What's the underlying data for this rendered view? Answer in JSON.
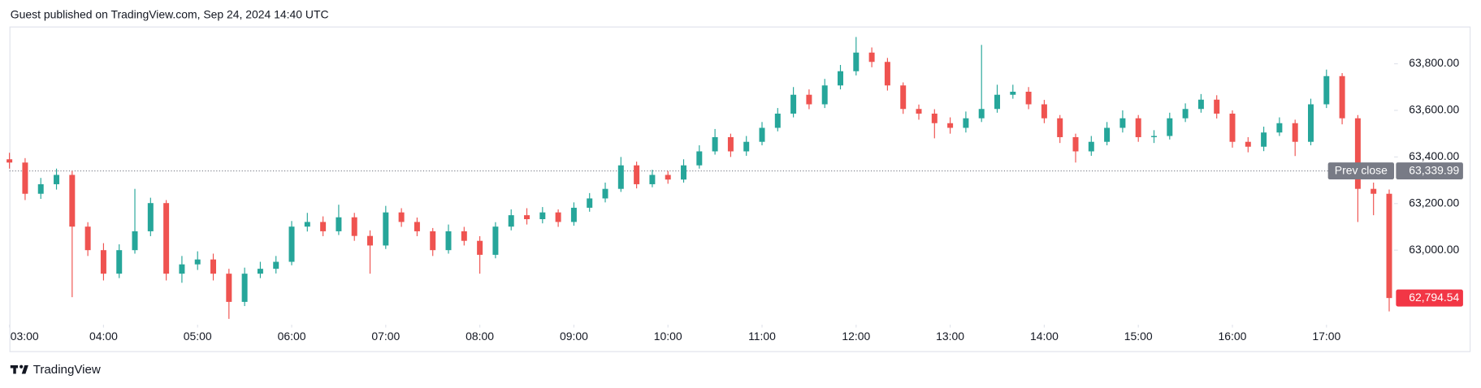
{
  "header": "Guest published on TradingView.com, Sep 24, 2024 14:40 UTC",
  "footer": "TradingView",
  "chart_data": {
    "type": "candlestick",
    "x": [
      "03:00",
      "03:10",
      "03:20",
      "03:30",
      "03:40",
      "03:50",
      "04:00",
      "04:10",
      "04:20",
      "04:30",
      "04:40",
      "04:50",
      "05:00",
      "05:10",
      "05:20",
      "05:30",
      "05:40",
      "05:50",
      "06:00",
      "06:10",
      "06:20",
      "06:30",
      "06:40",
      "06:50",
      "07:00",
      "07:10",
      "07:20",
      "07:30",
      "07:40",
      "07:50",
      "08:00",
      "08:10",
      "08:20",
      "08:30",
      "08:40",
      "08:50",
      "09:00",
      "09:10",
      "09:20",
      "09:30",
      "09:40",
      "09:50",
      "10:00",
      "10:10",
      "10:20",
      "10:30",
      "10:40",
      "10:50",
      "11:00",
      "11:10",
      "11:20",
      "11:30",
      "11:40",
      "11:50",
      "12:00",
      "12:10",
      "12:20",
      "12:30",
      "12:40",
      "12:50",
      "13:00",
      "13:10",
      "13:20",
      "13:30",
      "13:40",
      "13:50",
      "14:00",
      "14:10",
      "14:20",
      "14:30",
      "14:40",
      "14:50",
      "15:00",
      "15:10",
      "15:20",
      "15:30",
      "15:40",
      "15:50",
      "16:00",
      "16:10",
      "16:20",
      "16:30",
      "16:40",
      "16:50",
      "17:00",
      "17:10",
      "17:20",
      "17:30",
      "17:40"
    ],
    "open": [
      63390,
      63376,
      63242,
      63283,
      63323,
      63101,
      63000,
      62899,
      63000,
      63081,
      63202,
      62899,
      62939,
      62960,
      62899,
      62778,
      62899,
      62920,
      62950,
      63101,
      63121,
      63081,
      63141,
      63061,
      63020,
      63162,
      63121,
      63081,
      63000,
      63081,
      63040,
      62980,
      63101,
      63150,
      63133,
      63162,
      63121,
      63182,
      63222,
      63263,
      63364,
      63283,
      63323,
      63303,
      63364,
      63424,
      63485,
      63424,
      63465,
      63525,
      63586,
      63667,
      63626,
      63707,
      63768,
      63848,
      63808,
      63707,
      63606,
      63586,
      63545,
      63525,
      63566,
      63606,
      63667,
      63680,
      63626,
      63566,
      63485,
      63424,
      63465,
      63525,
      63566,
      63485,
      63490,
      63566,
      63606,
      63646,
      63586,
      63465,
      63444,
      63505,
      63545,
      63465,
      63626,
      63747,
      63566,
      63263,
      63242
    ],
    "high": [
      63418,
      63395,
      63310,
      63350,
      63340,
      63120,
      63030,
      63025,
      63263,
      63225,
      63215,
      62975,
      62995,
      62985,
      62920,
      62925,
      62950,
      62975,
      63125,
      63160,
      63145,
      63195,
      63160,
      63085,
      63190,
      63180,
      63140,
      63095,
      63110,
      63100,
      63060,
      63120,
      63175,
      63180,
      63185,
      63175,
      63205,
      63245,
      63290,
      63400,
      63380,
      63345,
      63340,
      63390,
      63450,
      63520,
      63500,
      63490,
      63550,
      63610,
      63700,
      63690,
      63735,
      63795,
      63915,
      63870,
      63825,
      63720,
      63625,
      63605,
      63570,
      63595,
      63881,
      63710,
      63710,
      63700,
      63645,
      63580,
      63500,
      63490,
      63550,
      63600,
      63580,
      63515,
      63590,
      63630,
      63670,
      63665,
      63600,
      63485,
      63530,
      63570,
      63560,
      63650,
      63775,
      63760,
      63580,
      63290,
      63260
    ],
    "low": [
      63350,
      63215,
      63220,
      63260,
      62798,
      62975,
      62870,
      62880,
      62985,
      63060,
      62870,
      62860,
      62915,
      62870,
      62705,
      62760,
      62880,
      62900,
      62935,
      63080,
      63060,
      63065,
      63040,
      62899,
      63005,
      63100,
      63060,
      62975,
      62985,
      63020,
      62899,
      62965,
      63085,
      63110,
      63115,
      63100,
      63105,
      63165,
      63205,
      63250,
      63265,
      63270,
      63285,
      63290,
      63350,
      63410,
      63400,
      63405,
      63450,
      63510,
      63570,
      63605,
      63610,
      63690,
      63750,
      63785,
      63685,
      63585,
      63560,
      63480,
      63500,
      63505,
      63550,
      63590,
      63650,
      63605,
      63545,
      63460,
      63376,
      63405,
      63450,
      63505,
      63465,
      63460,
      63475,
      63550,
      63590,
      63565,
      63440,
      63420,
      63425,
      63490,
      63404,
      63450,
      63610,
      63540,
      63121,
      63150,
      62737
    ],
    "close": [
      63376,
      63242,
      63283,
      63323,
      63101,
      63000,
      62899,
      63000,
      63081,
      63202,
      62899,
      62939,
      62960,
      62899,
      62778,
      62899,
      62920,
      62950,
      63101,
      63121,
      63081,
      63141,
      63061,
      63020,
      63162,
      63121,
      63081,
      63000,
      63081,
      63040,
      62980,
      63101,
      63150,
      63133,
      63162,
      63121,
      63182,
      63222,
      63263,
      63364,
      63283,
      63323,
      63303,
      63364,
      63424,
      63485,
      63424,
      63465,
      63525,
      63586,
      63667,
      63626,
      63707,
      63768,
      63848,
      63808,
      63707,
      63606,
      63586,
      63545,
      63525,
      63566,
      63606,
      63667,
      63680,
      63626,
      63566,
      63485,
      63424,
      63465,
      63525,
      63566,
      63485,
      63490,
      63566,
      63606,
      63646,
      63586,
      63465,
      63444,
      63505,
      63545,
      63465,
      63626,
      63747,
      63566,
      63263,
      63242,
      62794.54
    ],
    "up_color": "#26a69a",
    "down_color": "#ef5350",
    "ylim": [
      62680,
      63960
    ],
    "yticks": [
      {
        "value": 63000,
        "label": "63,000.00"
      },
      {
        "value": 63200,
        "label": "63,200.00"
      },
      {
        "value": 63400,
        "label": "63,400.00"
      },
      {
        "value": 63600,
        "label": "63,600.00"
      },
      {
        "value": 63800,
        "label": "63,800.00"
      }
    ],
    "xticks": [
      "03:00",
      "04:00",
      "05:00",
      "06:00",
      "07:00",
      "08:00",
      "09:00",
      "10:00",
      "11:00",
      "12:00",
      "13:00",
      "14:00",
      "15:00",
      "16:00",
      "17:00"
    ],
    "prev_close": {
      "label": "Prev close",
      "value": 63339.99,
      "value_label": "63,339.99",
      "color": "#787b86"
    },
    "last_price": {
      "value": 62794.54,
      "value_label": "62,794.54",
      "color": "#f23645"
    }
  }
}
